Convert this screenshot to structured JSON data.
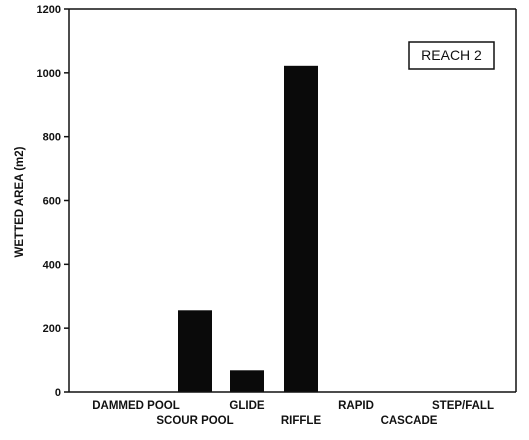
{
  "chart_data": {
    "type": "bar",
    "title": "",
    "xlabel": "",
    "ylabel": "WETTED AREA (m2)",
    "annotation": "REACH 2",
    "ylim": [
      0,
      1200
    ],
    "yticks": [
      0,
      200,
      400,
      600,
      800,
      1000,
      1200
    ],
    "categories": [
      "DAMMED POOL",
      "SCOUR POOL",
      "GLIDE",
      "RIFFLE",
      "RAPID",
      "CASCADE",
      "STEP/FALL"
    ],
    "values": [
      0,
      256,
      68,
      1022,
      0,
      0,
      0
    ],
    "grid": false,
    "bar_color": "#0a0a0a"
  }
}
